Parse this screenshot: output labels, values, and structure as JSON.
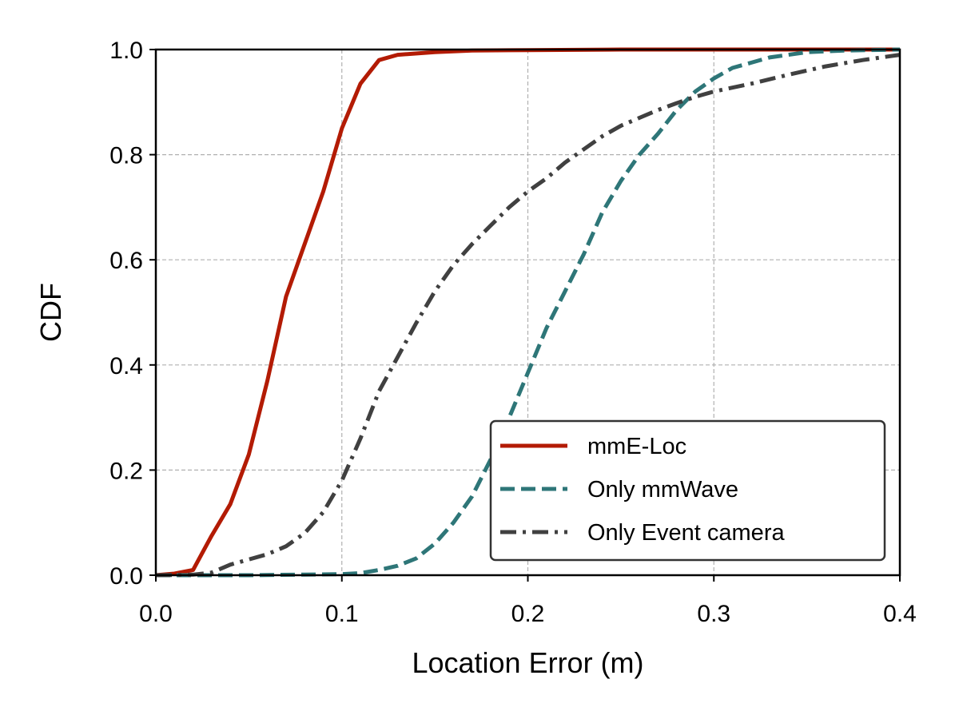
{
  "chart_data": {
    "type": "line",
    "title": "",
    "xlabel": "Location Error (m)",
    "ylabel": "CDF",
    "xlim": [
      0.0,
      0.4
    ],
    "ylim": [
      0.0,
      1.0
    ],
    "xticks": [
      0.0,
      0.1,
      0.2,
      0.3,
      0.4
    ],
    "yticks": [
      0.0,
      0.2,
      0.4,
      0.6,
      0.8,
      1.0
    ],
    "xtick_labels": [
      "0.0",
      "0.1",
      "0.2",
      "0.3",
      "0.4"
    ],
    "ytick_labels": [
      "0.0",
      "0.2",
      "0.4",
      "0.6",
      "0.8",
      "1.0"
    ],
    "grid": true,
    "legend_position": "bottom-right",
    "series": [
      {
        "name": "mmE-Loc",
        "color": "#b31b04",
        "style": "solid",
        "x": [
          0.0,
          0.01,
          0.02,
          0.03,
          0.04,
          0.05,
          0.06,
          0.07,
          0.08,
          0.09,
          0.1,
          0.11,
          0.12,
          0.13,
          0.15,
          0.17,
          0.2,
          0.25,
          0.3,
          0.35,
          0.4
        ],
        "y": [
          0.0,
          0.003,
          0.01,
          0.075,
          0.135,
          0.23,
          0.37,
          0.53,
          0.63,
          0.73,
          0.85,
          0.935,
          0.98,
          0.99,
          0.995,
          0.998,
          0.999,
          1.0,
          1.0,
          1.0,
          1.0
        ]
      },
      {
        "name": "Only mmWave",
        "color": "#2e7678",
        "style": "dashed",
        "x": [
          0.0,
          0.05,
          0.1,
          0.11,
          0.12,
          0.13,
          0.14,
          0.15,
          0.16,
          0.17,
          0.18,
          0.19,
          0.2,
          0.21,
          0.22,
          0.23,
          0.24,
          0.25,
          0.26,
          0.27,
          0.28,
          0.29,
          0.3,
          0.31,
          0.32,
          0.33,
          0.34,
          0.35,
          0.37,
          0.4
        ],
        "y": [
          0.0,
          0.0,
          0.002,
          0.004,
          0.01,
          0.018,
          0.032,
          0.06,
          0.1,
          0.15,
          0.22,
          0.3,
          0.385,
          0.47,
          0.54,
          0.61,
          0.69,
          0.75,
          0.8,
          0.84,
          0.885,
          0.92,
          0.945,
          0.965,
          0.975,
          0.985,
          0.99,
          0.995,
          0.998,
          1.0
        ]
      },
      {
        "name": "Only Event camera",
        "color": "#404040",
        "style": "dashdot",
        "x": [
          0.0,
          0.02,
          0.03,
          0.04,
          0.05,
          0.06,
          0.07,
          0.08,
          0.09,
          0.1,
          0.11,
          0.12,
          0.13,
          0.14,
          0.15,
          0.16,
          0.17,
          0.18,
          0.19,
          0.2,
          0.21,
          0.22,
          0.23,
          0.24,
          0.25,
          0.26,
          0.27,
          0.28,
          0.29,
          0.3,
          0.32,
          0.34,
          0.36,
          0.38,
          0.4
        ],
        "y": [
          0.0,
          0.001,
          0.005,
          0.02,
          0.03,
          0.04,
          0.055,
          0.08,
          0.12,
          0.18,
          0.26,
          0.35,
          0.415,
          0.48,
          0.54,
          0.59,
          0.63,
          0.665,
          0.7,
          0.73,
          0.755,
          0.785,
          0.81,
          0.835,
          0.855,
          0.87,
          0.885,
          0.898,
          0.91,
          0.92,
          0.935,
          0.952,
          0.968,
          0.98,
          0.99
        ]
      }
    ]
  }
}
